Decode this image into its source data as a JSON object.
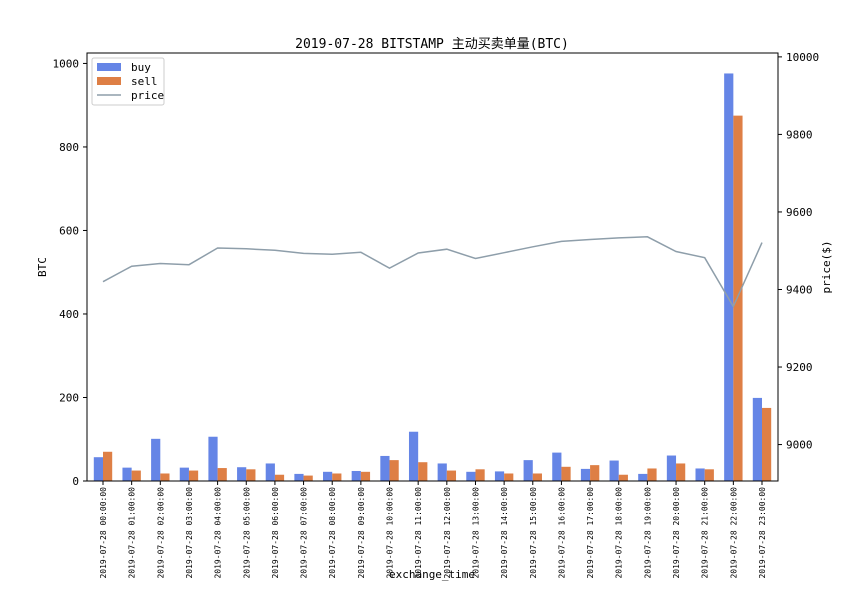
{
  "chart_data": {
    "type": "bar",
    "title": "2019-07-28 BITSTAMP 主动买卖单量(BTC)",
    "xlabel": "exchange_time",
    "ylabel": "BTC",
    "y2label": "price($)",
    "ylim": [
      0,
      1025
    ],
    "y2lim": [
      8906,
      10010
    ],
    "yticks": [
      "0",
      "200",
      "400",
      "600",
      "800",
      "1000"
    ],
    "y2ticks": [
      "9000",
      "9200",
      "9400",
      "9600",
      "9800",
      "10000"
    ],
    "legend_position": "top-left",
    "grid": false,
    "categories": [
      "2019-07-28 00:00:00",
      "2019-07-28 01:00:00",
      "2019-07-28 02:00:00",
      "2019-07-28 03:00:00",
      "2019-07-28 04:00:00",
      "2019-07-28 05:00:00",
      "2019-07-28 06:00:00",
      "2019-07-28 07:00:00",
      "2019-07-28 08:00:00",
      "2019-07-28 09:00:00",
      "2019-07-28 10:00:00",
      "2019-07-28 11:00:00",
      "2019-07-28 12:00:00",
      "2019-07-28 13:00:00",
      "2019-07-28 14:00:00",
      "2019-07-28 15:00:00",
      "2019-07-28 16:00:00",
      "2019-07-28 17:00:00",
      "2019-07-28 18:00:00",
      "2019-07-28 19:00:00",
      "2019-07-28 20:00:00",
      "2019-07-28 21:00:00",
      "2019-07-28 22:00:00",
      "2019-07-28 23:00:00"
    ],
    "series": [
      {
        "name": "buy",
        "type": "bar",
        "color": "#6585e6",
        "values": [
          57,
          32,
          101,
          32,
          106,
          33,
          42,
          17,
          22,
          24,
          60,
          118,
          42,
          22,
          23,
          50,
          68,
          29,
          49,
          17,
          61,
          30,
          976,
          199
        ]
      },
      {
        "name": "sell",
        "type": "bar",
        "color": "#de7f45",
        "values": [
          70,
          25,
          18,
          25,
          31,
          28,
          15,
          13,
          18,
          22,
          50,
          45,
          25,
          28,
          18,
          18,
          34,
          38,
          15,
          30,
          42,
          28,
          875,
          175
        ]
      },
      {
        "name": "price",
        "type": "line",
        "axis": "right",
        "color": "#8e9eaa",
        "values": [
          9420,
          9460,
          9467,
          9464,
          9507,
          9505,
          9501,
          9493,
          9491,
          9496,
          9455,
          9494,
          9504,
          9480,
          9495,
          9510,
          9524,
          9529,
          9533,
          9536,
          9498,
          9482,
          9356,
          9521
        ]
      }
    ]
  }
}
